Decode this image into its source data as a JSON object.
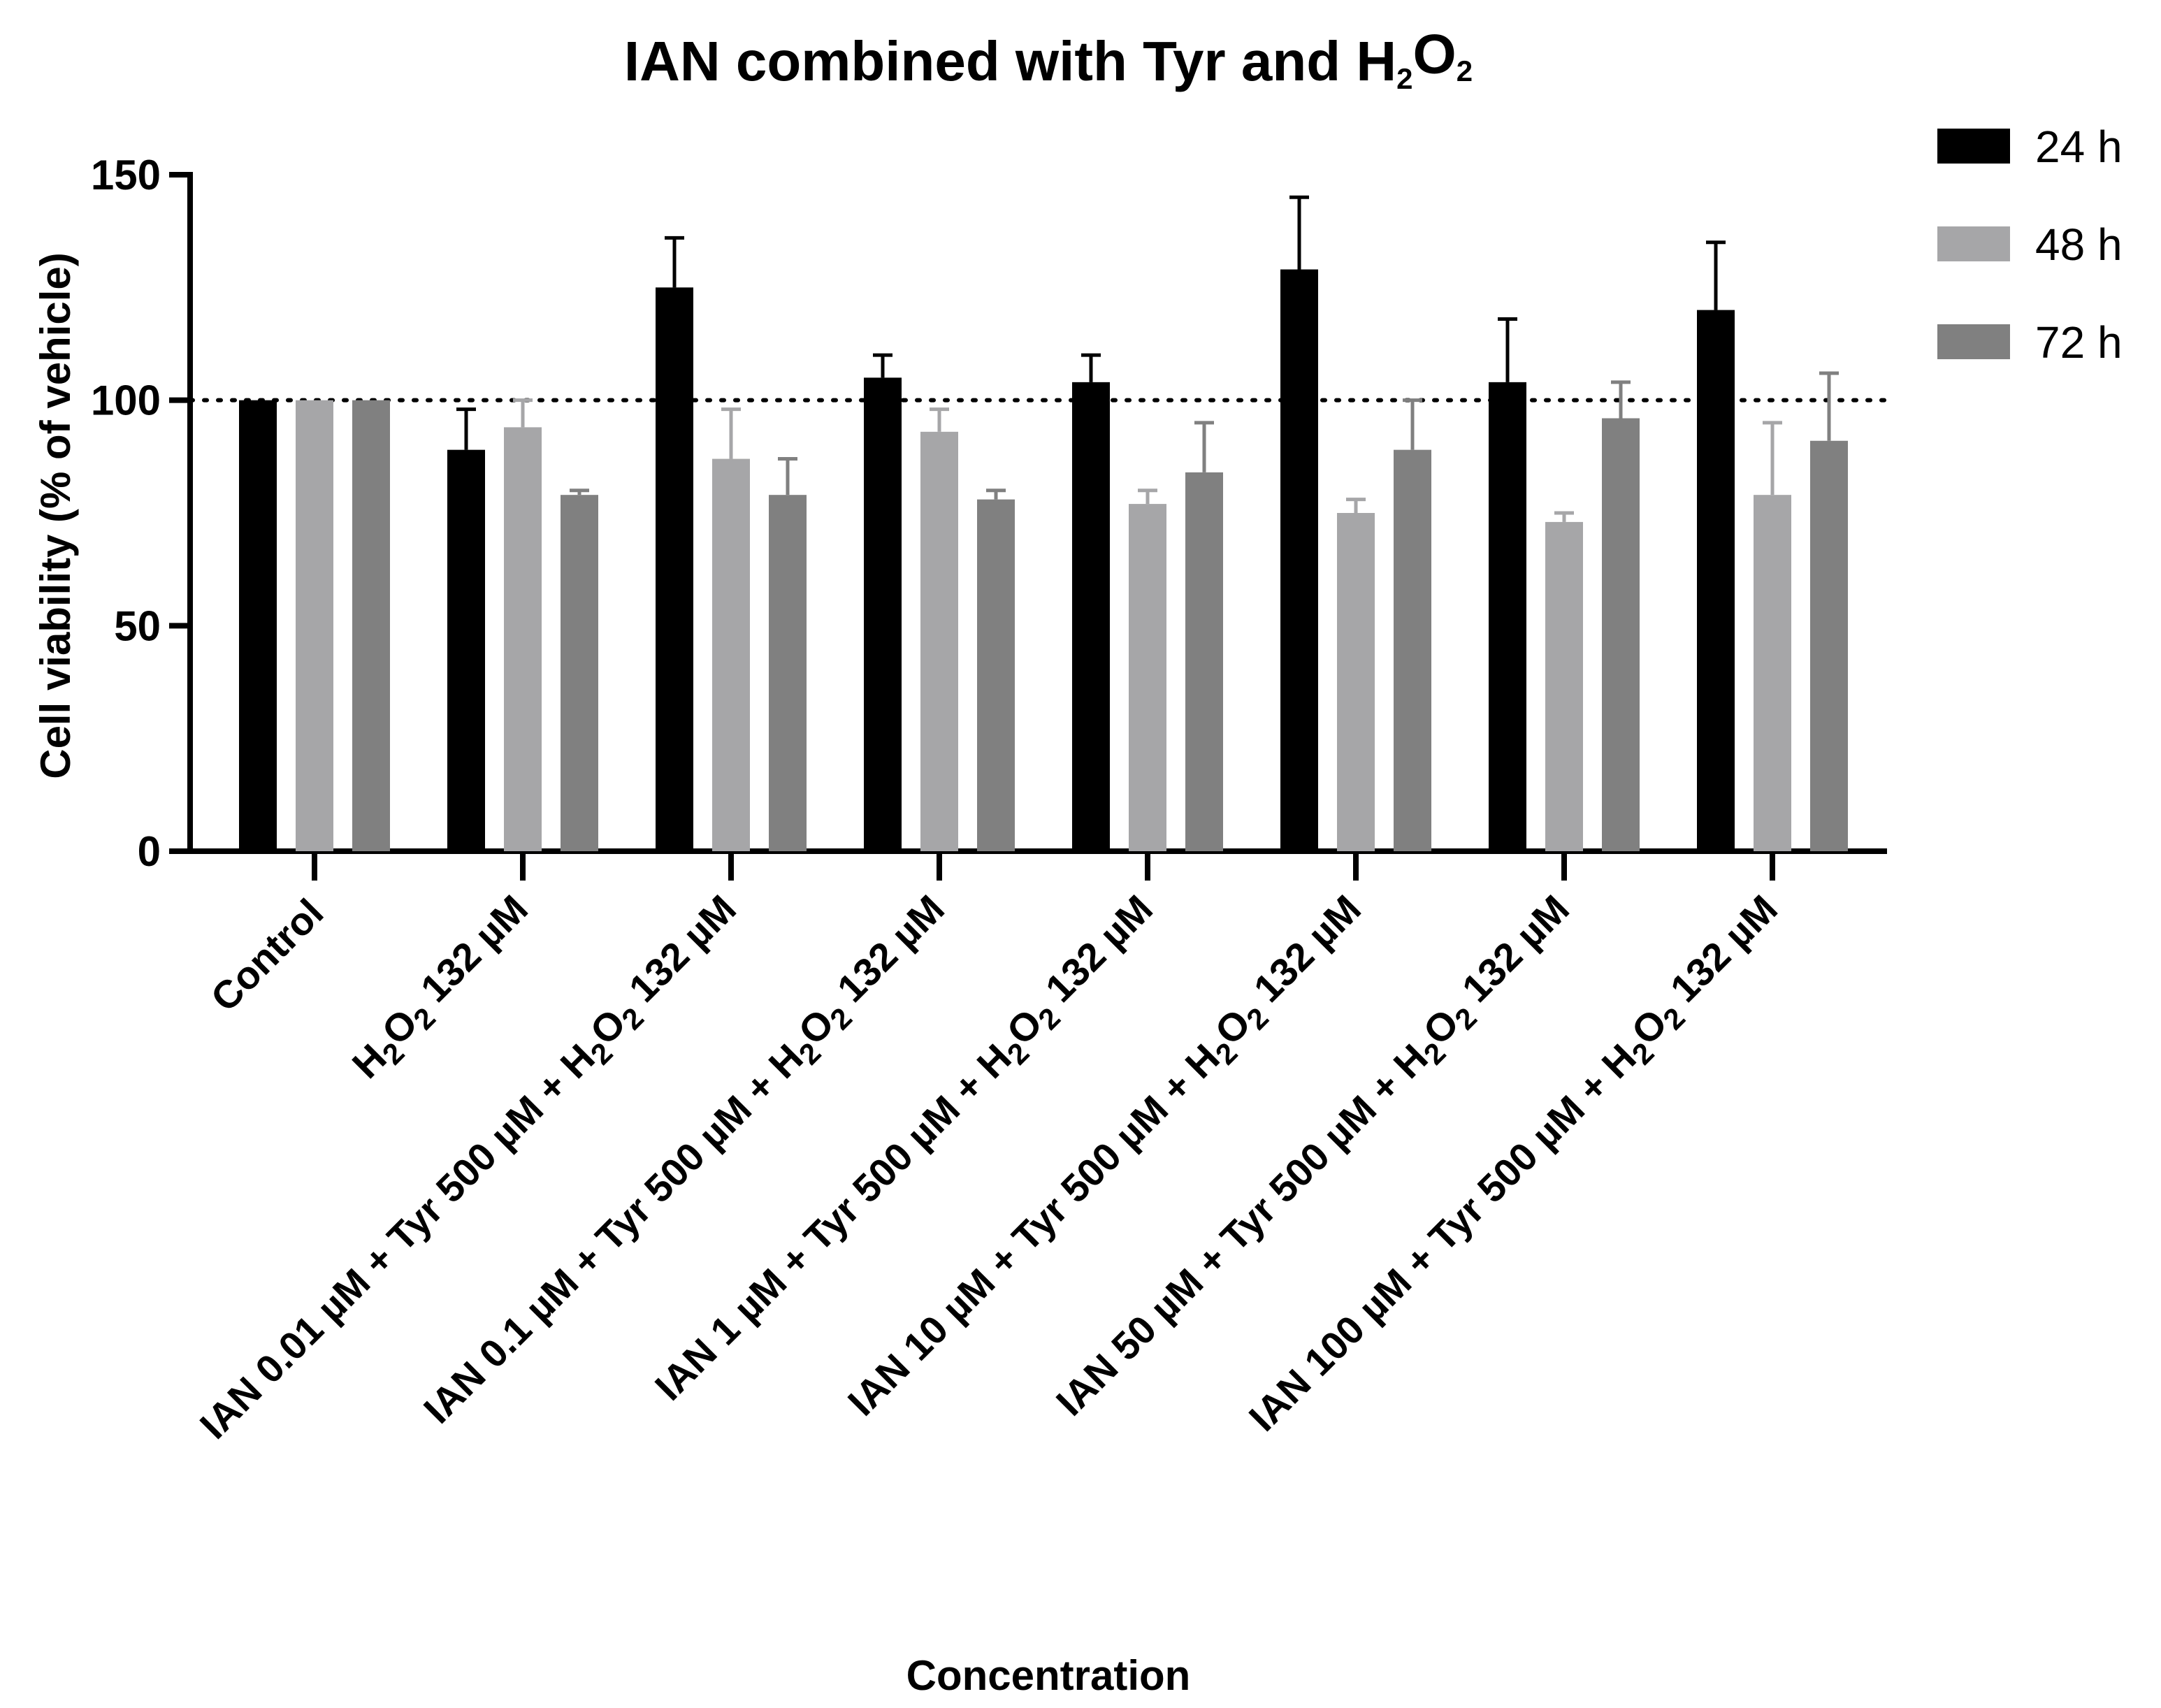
{
  "chart_data": {
    "type": "bar",
    "title": "IAN combined with Tyr and H2O2",
    "xlabel": "Concentration",
    "ylabel": "Cell viability (% of vehicle)",
    "ylim": [
      0,
      150
    ],
    "yticks": [
      0,
      50,
      100,
      150
    ],
    "reference_line": 100,
    "grid": false,
    "legend_position": "top-right",
    "categories": [
      "Control",
      "H2O2 132 µM",
      "IAN 0.01 µM + Tyr 500 µM + H2O2 132 µM",
      "IAN 0.1 µM + Tyr 500 µM + H2O2 132 µM",
      "IAN 1 µM + Tyr 500 µM + H2O2 132 µM",
      "IAN 10 µM + Tyr 500 µM + H2O2 132 µM",
      "IAN 50 µM + Tyr 500 µM + H2O2 132 µM",
      "IAN 100 µM + Tyr 500 µM + H2O2 132 µM"
    ],
    "series": [
      {
        "name": "24 h",
        "color": "#000000",
        "values": [
          100,
          89,
          125,
          105,
          104,
          129,
          104,
          120
        ],
        "errors": [
          0,
          9,
          11,
          5,
          6,
          16,
          14,
          15
        ]
      },
      {
        "name": "48 h",
        "color": "#a6a6a8",
        "values": [
          100,
          94,
          87,
          93,
          77,
          75,
          73,
          79
        ],
        "errors": [
          0,
          6,
          11,
          5,
          3,
          3,
          2,
          16
        ]
      },
      {
        "name": "72 h",
        "color": "#808080",
        "values": [
          100,
          79,
          79,
          78,
          84,
          89,
          96,
          91
        ],
        "errors": [
          0,
          1,
          8,
          2,
          11,
          11,
          8,
          15
        ]
      }
    ]
  }
}
